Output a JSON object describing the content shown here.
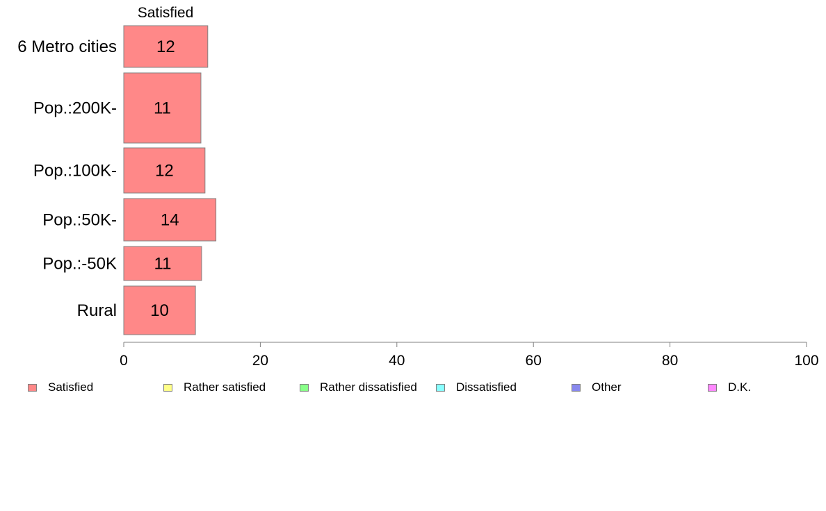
{
  "chart_data": {
    "type": "bar",
    "orientation": "horizontal",
    "stacked": true,
    "panel_header": "Satisfied",
    "categories": [
      "6 Metro cities",
      "Pop.:200K-",
      "Pop.:100K-",
      "Pop.:50K-",
      "Pop.:-50K",
      "Rural"
    ],
    "series": [
      {
        "name": "Satisfied",
        "values": [
          12.3,
          11.3,
          11.9,
          13.5,
          11.4,
          10.5
        ],
        "labels": [
          "12",
          "11",
          "12",
          "14",
          "11",
          "10"
        ]
      }
    ],
    "xlim": [
      0,
      100
    ],
    "xticks": [
      0,
      20,
      40,
      60,
      80,
      100
    ],
    "grid": false
  },
  "legend": {
    "placement": "bottom",
    "items": [
      {
        "label": "Satisfied",
        "color": "#ff8888"
      },
      {
        "label": "Rather satisfied",
        "color": "#ffff88"
      },
      {
        "label": "Rather dissatisfied",
        "color": "#88ff88"
      },
      {
        "label": "Dissatisfied",
        "color": "#88ffff"
      },
      {
        "label": "Other",
        "color": "#8888ee"
      },
      {
        "label": "D.K.",
        "color": "#ff88ff"
      }
    ]
  }
}
